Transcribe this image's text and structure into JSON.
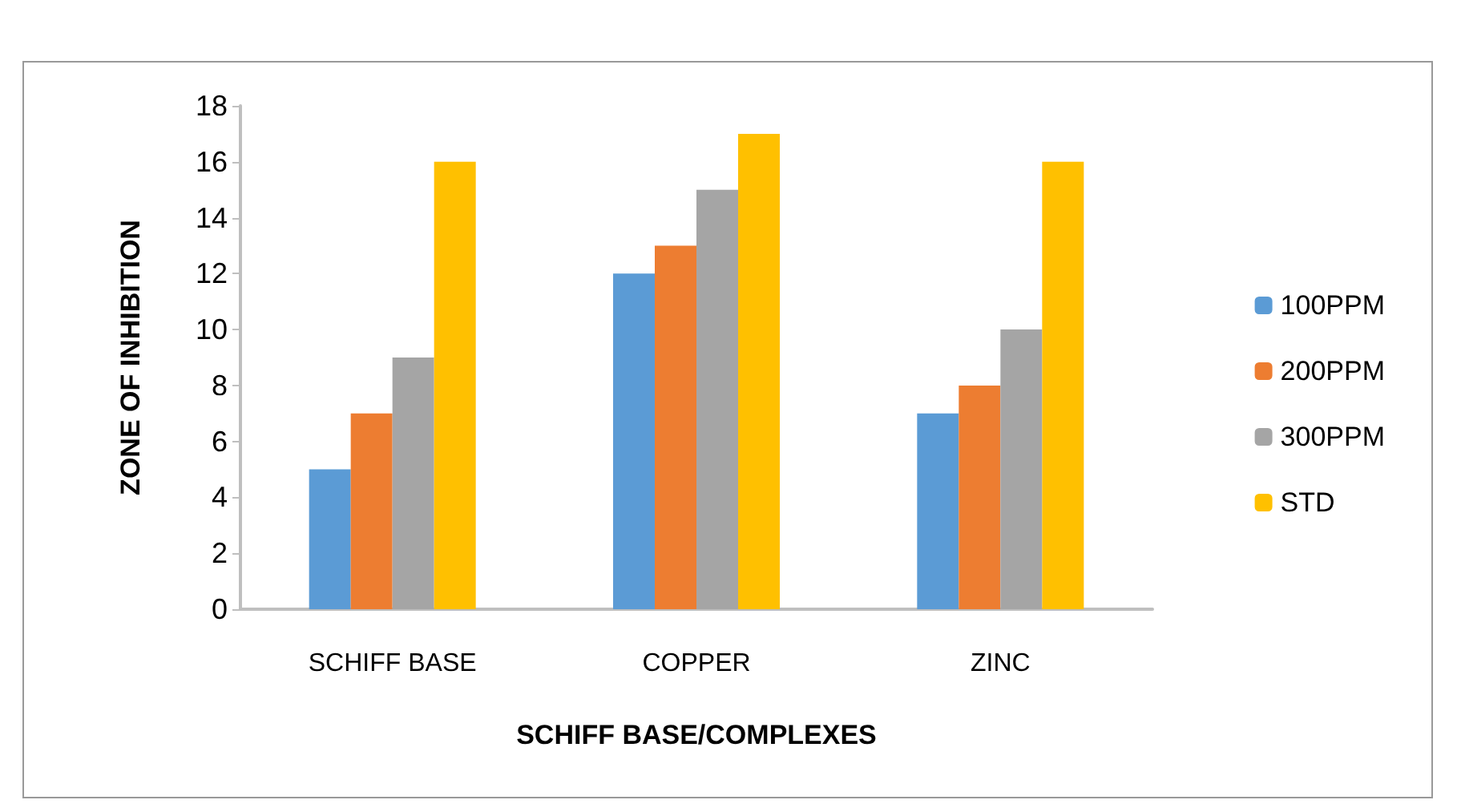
{
  "chart_data": {
    "type": "bar",
    "xlabel": "SCHIFF BASE/COMPLEXES",
    "ylabel": "ZONE OF INHIBITION",
    "categories": [
      "SCHIFF BASE",
      "COPPER",
      "ZINC"
    ],
    "series": [
      {
        "name": "100PPM",
        "color": "#5b9bd5",
        "values": [
          5,
          12,
          7
        ]
      },
      {
        "name": "200PPM",
        "color": "#ed7d31",
        "values": [
          7,
          13,
          8
        ]
      },
      {
        "name": "300PPM",
        "color": "#a5a5a5",
        "values": [
          9,
          15,
          10
        ]
      },
      {
        "name": "STD",
        "color": "#ffc000",
        "values": [
          16,
          17,
          16
        ]
      }
    ],
    "ylim": [
      0,
      18
    ],
    "yticks": [
      0,
      2,
      4,
      6,
      8,
      10,
      12,
      14,
      16,
      18
    ],
    "grid": false,
    "legend": "right"
  }
}
